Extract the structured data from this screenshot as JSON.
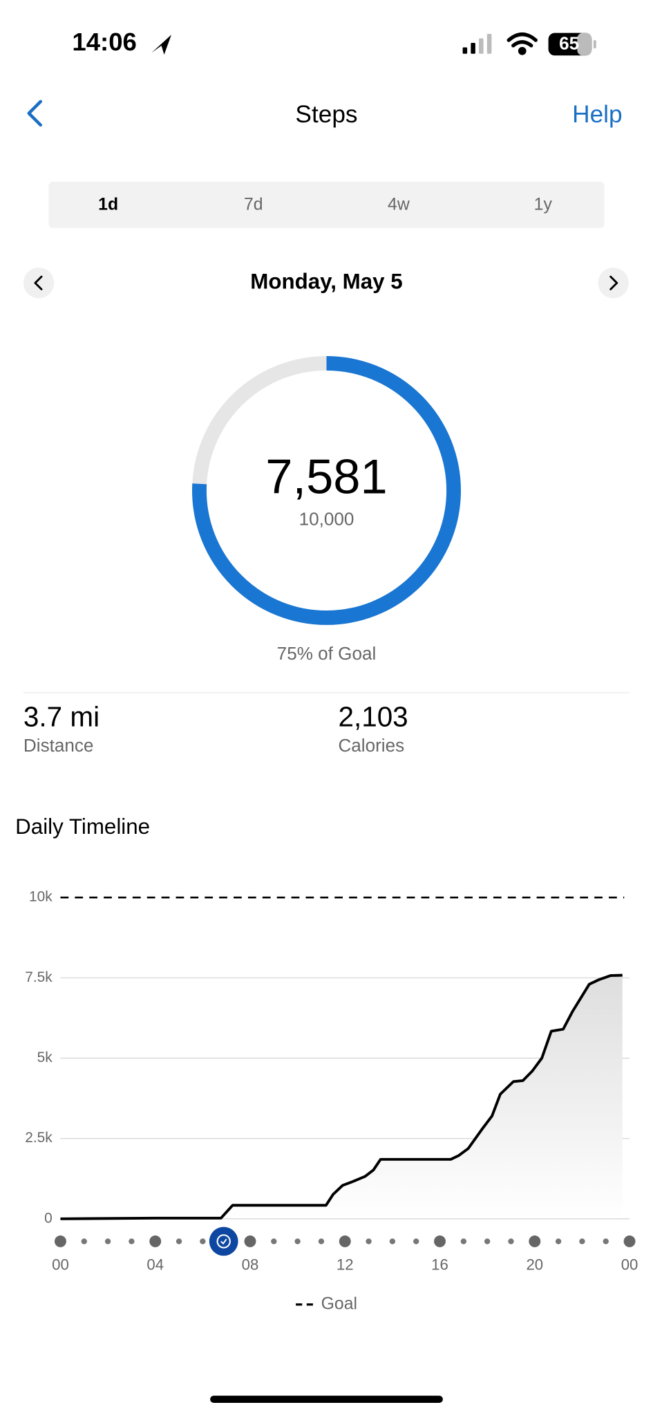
{
  "status": {
    "time": "14:06",
    "battery": "65"
  },
  "header": {
    "title": "Steps",
    "help": "Help"
  },
  "tabs": [
    "1d",
    "7d",
    "4w",
    "1y"
  ],
  "date": "Monday, May 5",
  "ring": {
    "value": 7581,
    "value_label": "7,581",
    "goal": 10000,
    "goal_label": "10,000",
    "caption": "75% of Goal"
  },
  "stats": [
    {
      "value": "3.7 mi",
      "label": "Distance"
    },
    {
      "value": "2,103",
      "label": "Calories"
    }
  ],
  "chart_data": {
    "type": "line",
    "title": "Daily Timeline",
    "x": [
      0,
      4,
      6.77,
      7.26,
      11.2,
      11.5,
      11.9,
      12.3,
      12.85,
      13.2,
      13.5,
      16.46,
      16.8,
      17.2,
      17.8,
      18.2,
      18.55,
      19.1,
      19.5,
      19.9,
      20.3,
      20.7,
      21.2,
      21.6,
      22.3,
      22.7,
      23.2,
      23.7
    ],
    "values": [
      0,
      20,
      20,
      420,
      420,
      760,
      1040,
      1150,
      1320,
      1520,
      1850,
      1850,
      1970,
      2190,
      2810,
      3200,
      3880,
      4270,
      4300,
      4600,
      5000,
      5840,
      5900,
      6460,
      7300,
      7440,
      7570,
      7581
    ],
    "color": "#000000",
    "xlim": [
      0,
      24
    ],
    "xticks": [
      {
        "value": 0,
        "label": "00"
      },
      {
        "value": 4,
        "label": "04"
      },
      {
        "value": 8,
        "label": "08"
      },
      12,
      16,
      20,
      {
        "value": 24,
        "label": "00"
      }
    ],
    "ylim": [
      0,
      10000
    ],
    "yticks": [
      0,
      {
        "value": 2500,
        "label": "2.5k"
      },
      {
        "value": 5000,
        "label": "5k"
      },
      {
        "value": 7500,
        "label": "7.5k"
      },
      {
        "value": 10000,
        "label": "10k"
      }
    ],
    "grid": true,
    "goal": 10000,
    "legend": "Goal"
  }
}
